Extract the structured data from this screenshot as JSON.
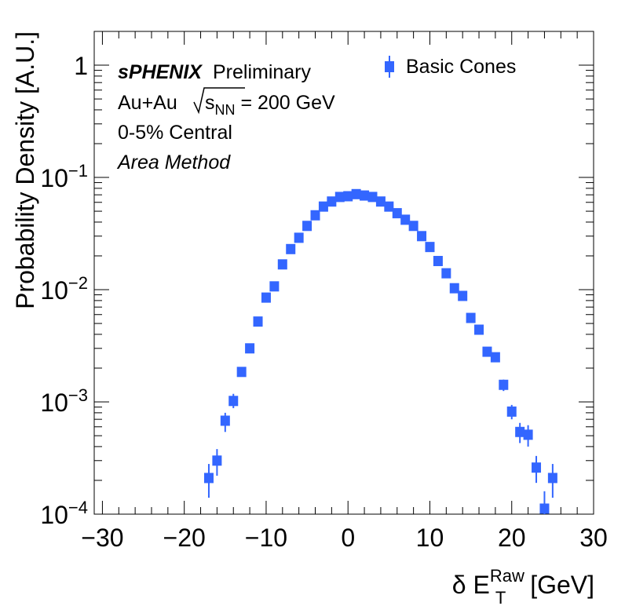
{
  "chart_data": {
    "type": "scatter",
    "xlim": [
      -31,
      30
    ],
    "ylim": [
      0.0001,
      2
    ],
    "yscale": "log",
    "grid": false,
    "legend_position": "top-right",
    "x_ticks": [
      {
        "value": -30,
        "label": "−30"
      },
      {
        "value": -20,
        "label": "−20"
      },
      {
        "value": -10,
        "label": "−10"
      },
      {
        "value": 0,
        "label": "0"
      },
      {
        "value": 10,
        "label": "10"
      },
      {
        "value": 20,
        "label": "20"
      },
      {
        "value": 30,
        "label": "30"
      }
    ],
    "y_ticks": [
      {
        "value": 1,
        "base": "1",
        "exp": ""
      },
      {
        "value": 0.1,
        "base": "10",
        "exp": "−1"
      },
      {
        "value": 0.01,
        "base": "10",
        "exp": "−2"
      },
      {
        "value": 0.001,
        "base": "10",
        "exp": "−3"
      },
      {
        "value": 0.0001,
        "base": "10",
        "exp": "−4"
      }
    ],
    "xlabel": {
      "main": "δ E",
      "sup": "Raw",
      "sub": "T",
      "unit": " [GeV]"
    },
    "ylabel": "Probability Density [A.U.]",
    "annotations": {
      "experiment": "sPHENIX",
      "status": "Preliminary",
      "system": "Au+Au",
      "energy_symbol": "s",
      "energy_sub": "NN",
      "energy_value": " = 200 GeV",
      "centrality": "0-5% Central",
      "method": "Area Method"
    },
    "color": "#3366ff",
    "series": [
      {
        "name": "Basic Cones",
        "points": [
          {
            "x": -17,
            "y": 0.00021,
            "ylo": 0.00014,
            "yhi": 0.00028
          },
          {
            "x": -16,
            "y": 0.0003,
            "ylo": 0.00022,
            "yhi": 0.00038
          },
          {
            "x": -15,
            "y": 0.00068,
            "ylo": 0.00054,
            "yhi": 0.0008
          },
          {
            "x": -14,
            "y": 0.00102,
            "ylo": 0.00088,
            "yhi": 0.00118
          },
          {
            "x": -13,
            "y": 0.00185,
            "ylo": 0.0017,
            "yhi": 0.002
          },
          {
            "x": -12,
            "y": 0.003
          },
          {
            "x": -11,
            "y": 0.0052
          },
          {
            "x": -10,
            "y": 0.0085
          },
          {
            "x": -9,
            "y": 0.0107
          },
          {
            "x": -8,
            "y": 0.0168
          },
          {
            "x": -7,
            "y": 0.023
          },
          {
            "x": -6,
            "y": 0.029
          },
          {
            "x": -5,
            "y": 0.037
          },
          {
            "x": -4,
            "y": 0.046
          },
          {
            "x": -3,
            "y": 0.055
          },
          {
            "x": -2,
            "y": 0.061
          },
          {
            "x": -1,
            "y": 0.067
          },
          {
            "x": 0,
            "y": 0.068
          },
          {
            "x": 1,
            "y": 0.071
          },
          {
            "x": 2,
            "y": 0.069
          },
          {
            "x": 3,
            "y": 0.067
          },
          {
            "x": 4,
            "y": 0.061
          },
          {
            "x": 5,
            "y": 0.055
          },
          {
            "x": 6,
            "y": 0.048
          },
          {
            "x": 7,
            "y": 0.042
          },
          {
            "x": 8,
            "y": 0.037
          },
          {
            "x": 9,
            "y": 0.03
          },
          {
            "x": 10,
            "y": 0.024
          },
          {
            "x": 11,
            "y": 0.018
          },
          {
            "x": 12,
            "y": 0.014
          },
          {
            "x": 13,
            "y": 0.0103
          },
          {
            "x": 14,
            "y": 0.0088
          },
          {
            "x": 15,
            "y": 0.0056
          },
          {
            "x": 16,
            "y": 0.0044
          },
          {
            "x": 17,
            "y": 0.0028
          },
          {
            "x": 18,
            "y": 0.0025
          },
          {
            "x": 19,
            "y": 0.00142,
            "ylo": 0.00125,
            "yhi": 0.00158
          },
          {
            "x": 20,
            "y": 0.00082,
            "ylo": 0.0007,
            "yhi": 0.00094
          },
          {
            "x": 21,
            "y": 0.00054,
            "ylo": 0.00043,
            "yhi": 0.00065
          },
          {
            "x": 22,
            "y": 0.00051,
            "ylo": 0.0004,
            "yhi": 0.00062
          },
          {
            "x": 23,
            "y": 0.00026,
            "ylo": 0.00019,
            "yhi": 0.00033
          },
          {
            "x": 24,
            "y": 0.000112,
            "ylo": 0.0001,
            "yhi": 0.00016
          },
          {
            "x": 25,
            "y": 0.00021,
            "ylo": 0.00014,
            "yhi": 0.00028
          }
        ]
      }
    ]
  }
}
